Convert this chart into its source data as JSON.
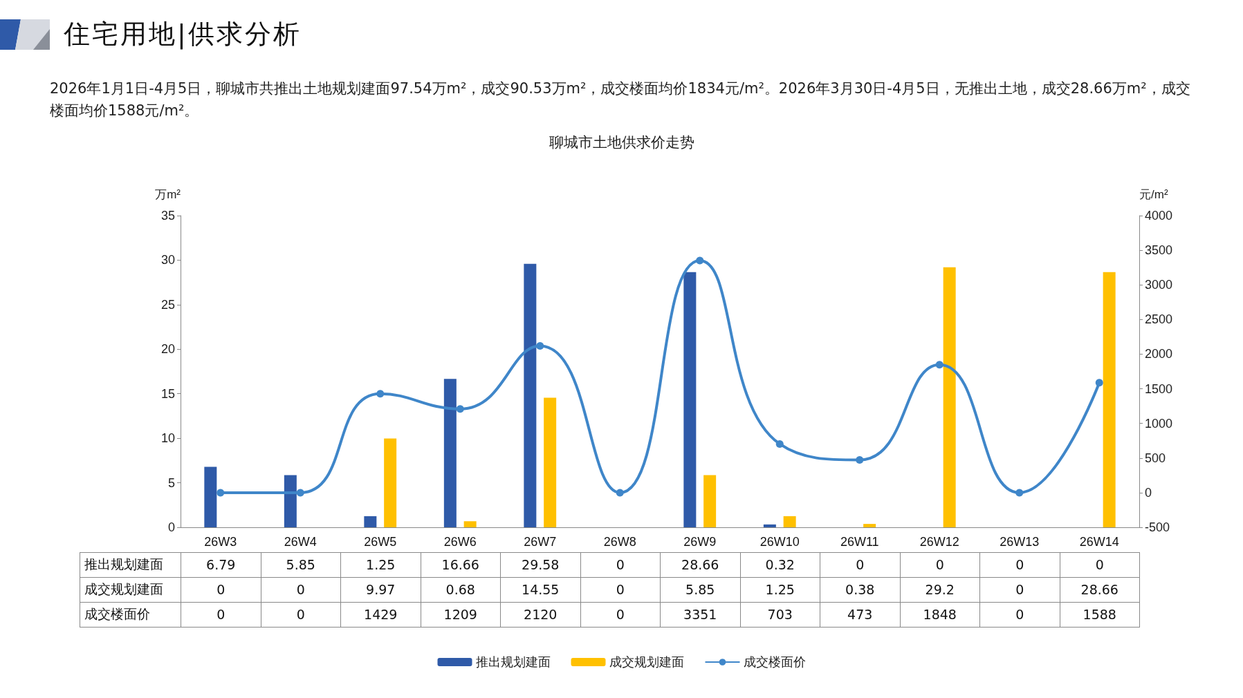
{
  "chart_data": {
    "type": "bar",
    "title": "聊城市土地供求价走势",
    "annotations": [
      "住宅用地|供求分析",
      "2026年1月1日-4月5日，聊城市共推出土地规划建面97.54万m²，成交90.53万m²，成交楼面均价1834元/m²。2026年3月30日-4月5日，无推出土地，成交28.66万m²，成交楼面均价1588元/m²。"
    ],
    "ylabel": "万m²",
    "y2label": "元/m²",
    "categories": [
      "26W3",
      "26W4",
      "26W5",
      "26W6",
      "26W7",
      "26W8",
      "26W9",
      "26W10",
      "26W11",
      "26W12",
      "26W13",
      "26W14"
    ],
    "series": [
      {
        "name": "推出规划建面",
        "color": "#2f5aa8",
        "values": [
          6.79,
          5.85,
          1.25,
          16.66,
          29.58,
          0,
          28.66,
          0.32,
          0,
          0,
          0,
          0
        ]
      },
      {
        "name": "成交规划建面",
        "color": "#ffc000",
        "values": [
          0,
          0,
          9.97,
          0.68,
          14.55,
          0,
          5.85,
          1.25,
          0.38,
          29.2,
          0,
          28.66
        ]
      },
      {
        "name": "成交楼面价",
        "type": "line",
        "axis": "y2",
        "color": "#3f86c9",
        "marker": "circle",
        "values": [
          0,
          0,
          1429,
          1209,
          2120,
          0,
          3351,
          703,
          473,
          1848,
          0,
          1588
        ]
      }
    ],
    "ylim": [
      0,
      35
    ],
    "yticks": [
      0,
      5,
      10,
      15,
      20,
      25,
      30,
      35
    ],
    "y2lim": [
      -500,
      4000
    ],
    "y2ticks": [
      -500,
      0,
      500,
      1000,
      1500,
      2000,
      2500,
      3000,
      3500,
      4000
    ],
    "data_labels": true,
    "grid": false,
    "legend": "bottom"
  }
}
